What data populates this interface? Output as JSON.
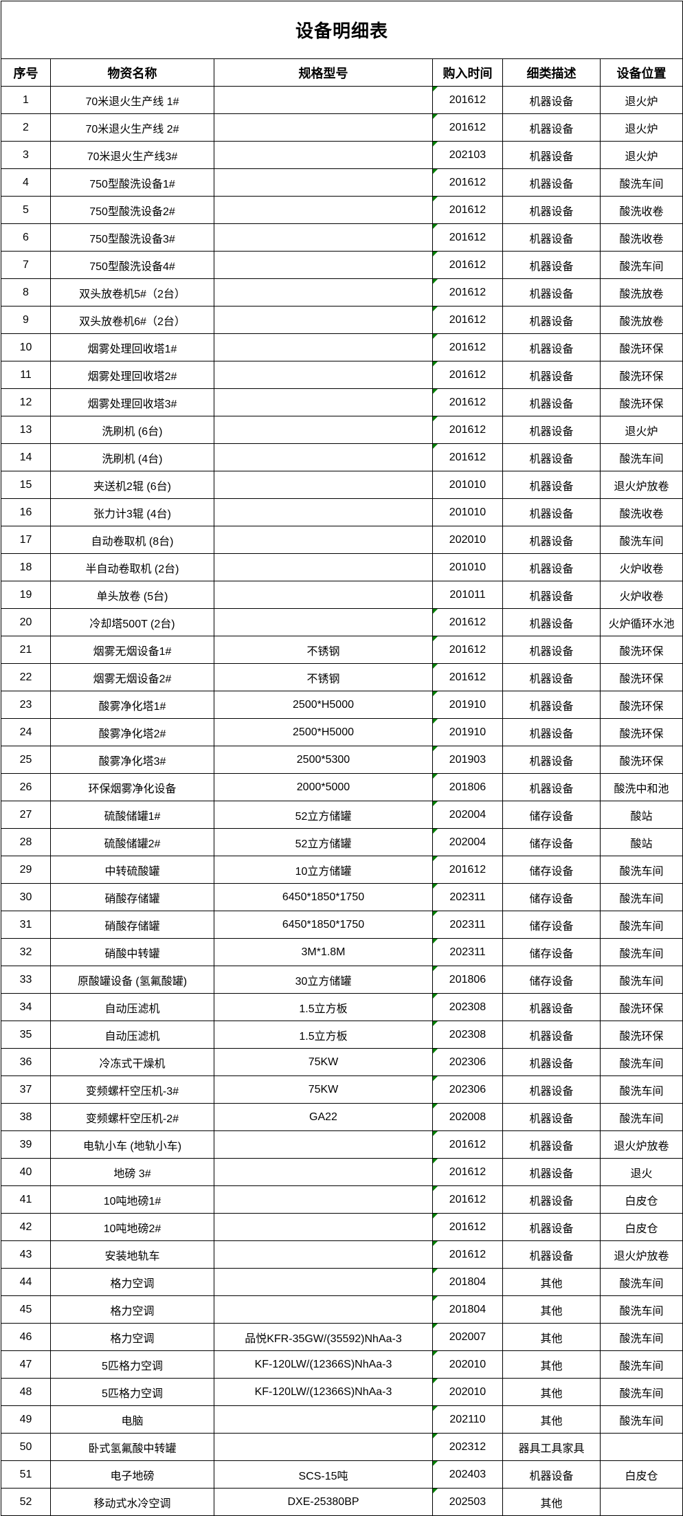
{
  "title": "设备明细表",
  "indicator_color": "#008000",
  "indicator_meaning": "stored-as-text-marker",
  "table": {
    "columns": [
      "序号",
      "物资名称",
      "规格型号",
      "购入时间",
      "细类描述",
      "设备位置"
    ],
    "rows": [
      {
        "no": "1",
        "name": "70米退火生产线 1#",
        "spec": "",
        "date": "201612",
        "cat": "机器设备",
        "loc": "退火炉",
        "mark": true
      },
      {
        "no": "2",
        "name": "70米退火生产线 2#",
        "spec": "",
        "date": "201612",
        "cat": "机器设备",
        "loc": "退火炉",
        "mark": true
      },
      {
        "no": "3",
        "name": "70米退火生产线3#",
        "spec": "",
        "date": "202103",
        "cat": "机器设备",
        "loc": "退火炉",
        "mark": true
      },
      {
        "no": "4",
        "name": "750型酸洗设备1#",
        "spec": "",
        "date": "201612",
        "cat": "机器设备",
        "loc": "酸洗车间",
        "mark": true
      },
      {
        "no": "5",
        "name": "750型酸洗设备2#",
        "spec": "",
        "date": "201612",
        "cat": "机器设备",
        "loc": "酸洗收卷",
        "mark": true
      },
      {
        "no": "6",
        "name": "750型酸洗设备3#",
        "spec": "",
        "date": "201612",
        "cat": "机器设备",
        "loc": "酸洗收卷",
        "mark": true
      },
      {
        "no": "7",
        "name": "750型酸洗设备4#",
        "spec": "",
        "date": "201612",
        "cat": "机器设备",
        "loc": "酸洗车间",
        "mark": true
      },
      {
        "no": "8",
        "name": "双头放卷机5#（2台）",
        "spec": "",
        "date": "201612",
        "cat": "机器设备",
        "loc": "酸洗放卷",
        "mark": true
      },
      {
        "no": "9",
        "name": "双头放卷机6#（2台）",
        "spec": "",
        "date": "201612",
        "cat": "机器设备",
        "loc": "酸洗放卷",
        "mark": true
      },
      {
        "no": "10",
        "name": "烟雾处理回收塔1#",
        "spec": "",
        "date": "201612",
        "cat": "机器设备",
        "loc": "酸洗环保",
        "mark": true
      },
      {
        "no": "11",
        "name": "烟雾处理回收塔2#",
        "spec": "",
        "date": "201612",
        "cat": "机器设备",
        "loc": "酸洗环保",
        "mark": true
      },
      {
        "no": "12",
        "name": "烟雾处理回收塔3#",
        "spec": "",
        "date": "201612",
        "cat": "机器设备",
        "loc": "酸洗环保",
        "mark": true
      },
      {
        "no": "13",
        "name": "洗刷机 (6台)",
        "spec": "",
        "date": "201612",
        "cat": "机器设备",
        "loc": "退火炉",
        "mark": true
      },
      {
        "no": "14",
        "name": "洗刷机 (4台)",
        "spec": "",
        "date": "201612",
        "cat": "机器设备",
        "loc": "酸洗车间",
        "mark": true
      },
      {
        "no": "15",
        "name": "夹送机2辊 (6台)",
        "spec": "",
        "date": "201010",
        "cat": "机器设备",
        "loc": "退火炉放卷",
        "mark": false
      },
      {
        "no": "16",
        "name": "张力计3辊 (4台)",
        "spec": "",
        "date": "201010",
        "cat": "机器设备",
        "loc": "酸洗收卷",
        "mark": false
      },
      {
        "no": "17",
        "name": "自动卷取机 (8台)",
        "spec": "",
        "date": "202010",
        "cat": "机器设备",
        "loc": "酸洗车间",
        "mark": false
      },
      {
        "no": "18",
        "name": "半自动卷取机 (2台)",
        "spec": "",
        "date": "201010",
        "cat": "机器设备",
        "loc": "火炉收卷",
        "mark": false
      },
      {
        "no": "19",
        "name": "单头放卷 (5台)",
        "spec": "",
        "date": "201011",
        "cat": "机器设备",
        "loc": "火炉收卷",
        "mark": false
      },
      {
        "no": "20",
        "name": "冷却塔500T (2台)",
        "spec": "",
        "date": "201612",
        "cat": "机器设备",
        "loc": "火炉循环水池",
        "mark": true
      },
      {
        "no": "21",
        "name": "烟雾无烟设备1#",
        "spec": "不锈钢",
        "date": "201612",
        "cat": "机器设备",
        "loc": "酸洗环保",
        "mark": true
      },
      {
        "no": "22",
        "name": "烟雾无烟设备2#",
        "spec": "不锈钢",
        "date": "201612",
        "cat": "机器设备",
        "loc": "酸洗环保",
        "mark": true
      },
      {
        "no": "23",
        "name": "酸雾净化塔1#",
        "spec": "2500*H5000",
        "date": "201910",
        "cat": "机器设备",
        "loc": "酸洗环保",
        "mark": true
      },
      {
        "no": "24",
        "name": "酸雾净化塔2#",
        "spec": "2500*H5000",
        "date": "201910",
        "cat": "机器设备",
        "loc": "酸洗环保",
        "mark": true
      },
      {
        "no": "25",
        "name": "酸雾净化塔3#",
        "spec": "2500*5300",
        "date": "201903",
        "cat": "机器设备",
        "loc": "酸洗环保",
        "mark": true
      },
      {
        "no": "26",
        "name": "环保烟雾净化设备",
        "spec": "2000*5000",
        "date": "201806",
        "cat": "机器设备",
        "loc": "酸洗中和池",
        "mark": true
      },
      {
        "no": "27",
        "name": "硫酸储罐1#",
        "spec": "52立方储罐",
        "date": "202004",
        "cat": "储存设备",
        "loc": "酸站",
        "mark": true
      },
      {
        "no": "28",
        "name": "硫酸储罐2#",
        "spec": "52立方储罐",
        "date": "202004",
        "cat": "储存设备",
        "loc": "酸站",
        "mark": true
      },
      {
        "no": "29",
        "name": "中转硫酸罐",
        "spec": "10立方储罐",
        "date": "201612",
        "cat": "储存设备",
        "loc": "酸洗车间",
        "mark": true
      },
      {
        "no": "30",
        "name": "硝酸存储罐",
        "spec": "6450*1850*1750",
        "date": "202311",
        "cat": "储存设备",
        "loc": "酸洗车间",
        "mark": true
      },
      {
        "no": "31",
        "name": "硝酸存储罐",
        "spec": "6450*1850*1750",
        "date": "202311",
        "cat": "储存设备",
        "loc": "酸洗车间",
        "mark": true
      },
      {
        "no": "32",
        "name": "硝酸中转罐",
        "spec": "3M*1.8M",
        "date": "202311",
        "cat": "储存设备",
        "loc": "酸洗车间",
        "mark": true
      },
      {
        "no": "33",
        "name": "原酸罐设备 (氢氟酸罐)",
        "spec": "30立方储罐",
        "date": "201806",
        "cat": "储存设备",
        "loc": "酸洗车间",
        "mark": true
      },
      {
        "no": "34",
        "name": "自动压滤机",
        "spec": "1.5立方板",
        "date": "202308",
        "cat": "机器设备",
        "loc": "酸洗环保",
        "mark": true
      },
      {
        "no": "35",
        "name": "自动压滤机",
        "spec": "1.5立方板",
        "date": "202308",
        "cat": "机器设备",
        "loc": "酸洗环保",
        "mark": true
      },
      {
        "no": "36",
        "name": "冷冻式干燥机",
        "spec": "75KW",
        "date": "202306",
        "cat": "机器设备",
        "loc": "酸洗车间",
        "mark": true
      },
      {
        "no": "37",
        "name": "变频螺杆空压机-3#",
        "spec": "75KW",
        "date": "202306",
        "cat": "机器设备",
        "loc": "酸洗车间",
        "mark": true
      },
      {
        "no": "38",
        "name": "变频螺杆空压机-2#",
        "spec": "GA22",
        "date": "202008",
        "cat": "机器设备",
        "loc": "酸洗车间",
        "mark": true
      },
      {
        "no": "39",
        "name": "电轨小车 (地轨小车)",
        "spec": "",
        "date": "201612",
        "cat": "机器设备",
        "loc": "退火炉放卷",
        "mark": true
      },
      {
        "no": "40",
        "name": "地磅 3#",
        "spec": "",
        "date": "201612",
        "cat": "机器设备",
        "loc": "退火",
        "mark": true
      },
      {
        "no": "41",
        "name": "10吨地磅1#",
        "spec": "",
        "date": "201612",
        "cat": "机器设备",
        "loc": "白皮仓",
        "mark": true
      },
      {
        "no": "42",
        "name": "10吨地磅2#",
        "spec": "",
        "date": "201612",
        "cat": "机器设备",
        "loc": "白皮仓",
        "mark": true
      },
      {
        "no": "43",
        "name": "安装地轨车",
        "spec": "",
        "date": "201612",
        "cat": "机器设备",
        "loc": "退火炉放卷",
        "mark": true
      },
      {
        "no": "44",
        "name": "格力空调",
        "spec": "",
        "date": "201804",
        "cat": "其他",
        "loc": "酸洗车间",
        "mark": true
      },
      {
        "no": "45",
        "name": "格力空调",
        "spec": "",
        "date": "201804",
        "cat": "其他",
        "loc": "酸洗车间",
        "mark": true
      },
      {
        "no": "46",
        "name": "格力空调",
        "spec": "品悦KFR-35GW/(35592)NhAa-3",
        "date": "202007",
        "cat": "其他",
        "loc": "酸洗车间",
        "mark": true
      },
      {
        "no": "47",
        "name": "5匹格力空调",
        "spec": "KF-120LW/(12366S)NhAa-3",
        "date": "202010",
        "cat": "其他",
        "loc": "酸洗车间",
        "mark": true
      },
      {
        "no": "48",
        "name": "5匹格力空调",
        "spec": "KF-120LW/(12366S)NhAa-3",
        "date": "202010",
        "cat": "其他",
        "loc": "酸洗车间",
        "mark": true
      },
      {
        "no": "49",
        "name": "电脑",
        "spec": "",
        "date": "202110",
        "cat": "其他",
        "loc": "酸洗车间",
        "mark": true
      },
      {
        "no": "50",
        "name": "卧式氢氟酸中转罐",
        "spec": "",
        "date": "202312",
        "cat": "器具工具家具",
        "loc": "",
        "mark": true
      },
      {
        "no": "51",
        "name": "电子地磅",
        "spec": "SCS-15吨",
        "date": "202403",
        "cat": "机器设备",
        "loc": "白皮仓",
        "mark": true
      },
      {
        "no": "52",
        "name": "移动式水冷空调",
        "spec": "DXE-25380BP",
        "date": "202503",
        "cat": "其他",
        "loc": "",
        "mark": true
      }
    ]
  }
}
